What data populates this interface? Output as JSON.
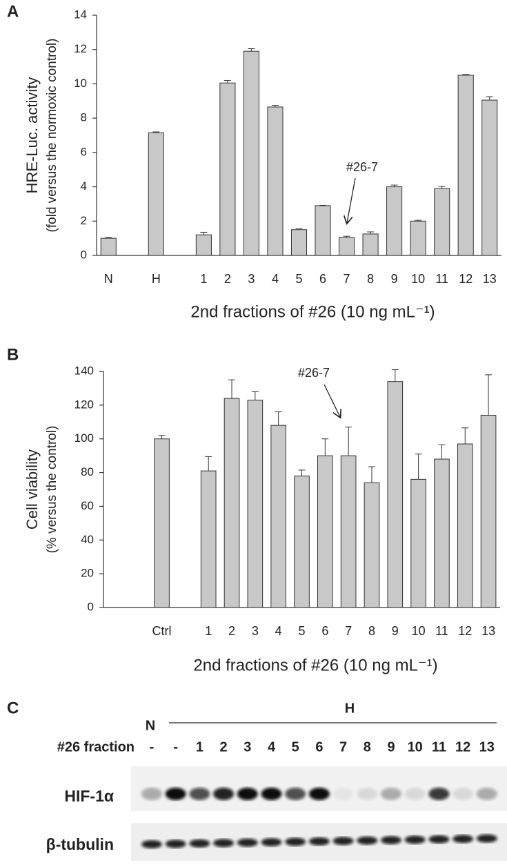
{
  "chart_data": [
    {
      "type": "bar",
      "panel": "A",
      "ylabel": "HRE-Luc. activity",
      "ylabel_note": "(fold versus the normoxic control)",
      "categories": [
        "N",
        null,
        "H",
        null,
        "1",
        "2",
        "3",
        "4",
        "5",
        "6",
        "7",
        "8",
        "9",
        "10",
        "11",
        "12",
        "13"
      ],
      "values": [
        1.0,
        null,
        7.15,
        null,
        1.2,
        10.05,
        11.9,
        8.65,
        1.5,
        2.9,
        1.05,
        1.25,
        4.0,
        2.0,
        3.9,
        10.5,
        9.05
      ],
      "errors": [
        0.05,
        null,
        0.05,
        null,
        0.15,
        0.15,
        0.15,
        0.1,
        0.05,
        0.02,
        0.07,
        0.12,
        0.1,
        0.05,
        0.12,
        0.05,
        0.2
      ],
      "color": "#c8c8c8",
      "ylim": [
        0,
        14
      ],
      "yticks": [
        0,
        2,
        4,
        6,
        8,
        10,
        12,
        14
      ],
      "xlabel": "2nd fractions of #26 (10 ng mL⁻¹)",
      "annotation": "#26-7"
    },
    {
      "type": "bar",
      "panel": "B",
      "ylabel": "Cell viability",
      "ylabel_note": "(% versus the control)",
      "categories": [
        null,
        null,
        "Ctrl",
        null,
        "1",
        "2",
        "3",
        "4",
        "5",
        "6",
        "7",
        "8",
        "9",
        "10",
        "11",
        "12",
        "13"
      ],
      "values": [
        null,
        null,
        100,
        null,
        81,
        124,
        123,
        108,
        78,
        90,
        90,
        74,
        134,
        76,
        88,
        97,
        114
      ],
      "errors": [
        null,
        null,
        2,
        null,
        8.5,
        11,
        5,
        8,
        3.5,
        10,
        17,
        9.5,
        7,
        15,
        8.5,
        9.5,
        24
      ],
      "color": "#c8c8c8",
      "ylim": [
        0,
        140
      ],
      "yticks": [
        0,
        20,
        40,
        60,
        80,
        100,
        120,
        140
      ],
      "xlabel": "2nd fractions of #26 (10 ng mL⁻¹)",
      "annotation": "#26-7"
    }
  ],
  "blot": {
    "panel": "C",
    "groups": [
      "N",
      "H"
    ],
    "row_label": "#26 fraction",
    "lanes": [
      "-",
      "-",
      "1",
      "2",
      "3",
      "4",
      "5",
      "6",
      "7",
      "8",
      "9",
      "10",
      "11",
      "12",
      "13"
    ],
    "bands": [
      "HIF-1α",
      "β-tubulin"
    ]
  }
}
